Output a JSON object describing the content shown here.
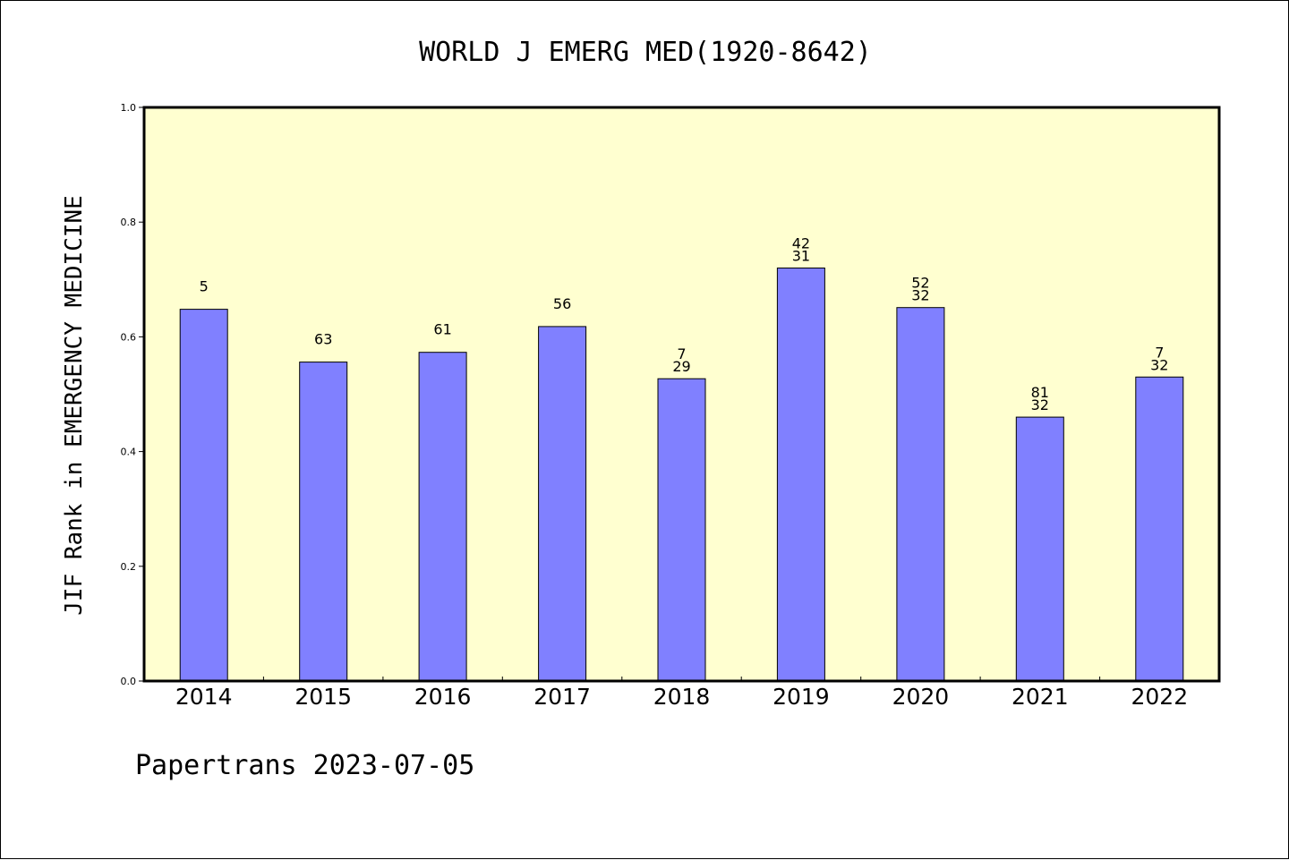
{
  "chart_data": {
    "type": "bar",
    "title": "WORLD J EMERG MED(1920-8642)",
    "ylabel": "JIF Rank in EMERGENCY MEDICINE",
    "xlabel": "",
    "ylim": [
      0,
      1.0
    ],
    "yticks": [
      "0.0",
      "0.2",
      "0.4",
      "0.6",
      "0.8",
      "1.0"
    ],
    "categories": [
      "2014",
      "2015",
      "2016",
      "2017",
      "2018",
      "2019",
      "2020",
      "2021",
      "2022"
    ],
    "values": [
      0.648,
      0.556,
      0.573,
      0.618,
      0.527,
      0.72,
      0.651,
      0.46,
      0.53
    ],
    "bar_labels": [
      [
        "5"
      ],
      [
        "63"
      ],
      [
        "61"
      ],
      [
        "56"
      ],
      [
        "7",
        "29"
      ],
      [
        "42",
        "31"
      ],
      [
        "52",
        "32"
      ],
      [
        "81",
        "32"
      ],
      [
        "7",
        "32"
      ]
    ],
    "grid": false,
    "colors": {
      "bar": "#8080ff",
      "plot_background": "#ffffd0"
    }
  },
  "footer": {
    "text": "Papertrans 2023-07-05"
  }
}
